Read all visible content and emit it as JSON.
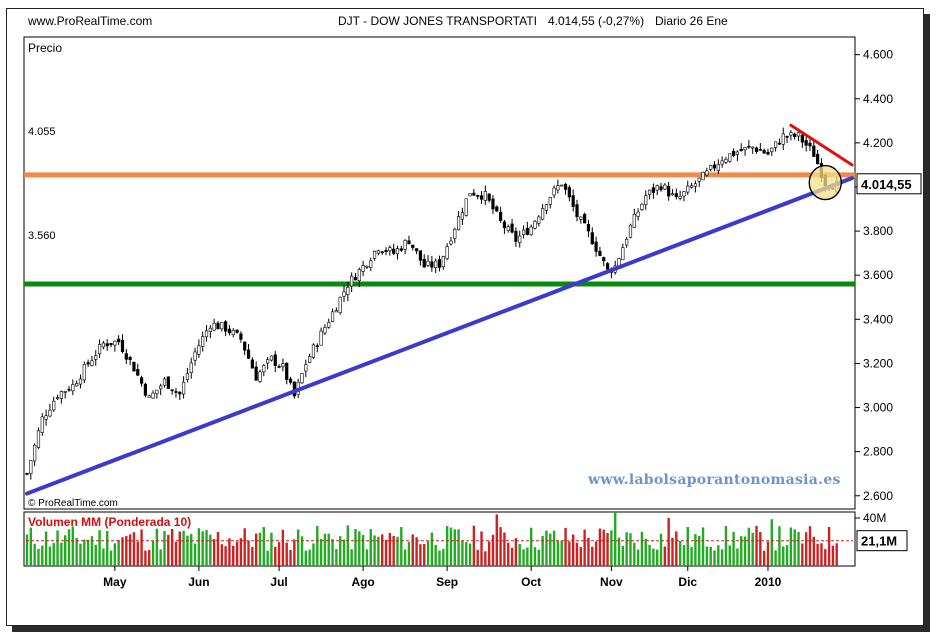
{
  "header": {
    "site": "www.ProRealTime.com",
    "title": "DJT - DOW JONES TRANSPORTATI",
    "quote": "4.014,55 (-0,27%)",
    "period": "Diario  26 Ene"
  },
  "panel_label": "Precio",
  "source_label": "© ProRealTime.com",
  "watermark": "www.labolsaporantonomasia.es",
  "colors": {
    "resistance": "#f08a4b",
    "support": "#0a8a0a",
    "trendline": "#3a3acc",
    "short_trend": "#e01010",
    "highlight": "#f5e08a",
    "volume_up": "#22aa22",
    "volume_down": "#cc2222"
  },
  "chart_data": [
    {
      "type": "candlestick",
      "title": "DJT - DOW JONES TRANSPORTATI",
      "ylabel": "Precio",
      "ylim": [
        2540,
        4680
      ],
      "y_ticks": [
        "4.600",
        "4.400",
        "4.200",
        "4.000",
        "3.800",
        "3.600",
        "3.400",
        "3.200",
        "3.000",
        "2.800",
        "2.600"
      ],
      "y_tick_values": [
        4600,
        4400,
        4200,
        4000,
        3800,
        3600,
        3400,
        3200,
        3000,
        2800,
        2600
      ],
      "x_ticks": [
        "May",
        "Jun",
        "Jul",
        "Ago",
        "Sep",
        "Oct",
        "Nov",
        "Dic",
        "2010"
      ],
      "x_tick_sessions": [
        23,
        45,
        66,
        88,
        110,
        132,
        153,
        173,
        194
      ],
      "sessions": 216,
      "last_price_label": "4.014,55",
      "last_price": 4014.55,
      "levels": [
        {
          "name": "resistance",
          "label": "4.055",
          "value": 4055
        },
        {
          "name": "support",
          "label": "3.560",
          "value": 3560
        }
      ],
      "trendlines": [
        {
          "name": "long-term-support",
          "from": [
            0,
            2610
          ],
          "to": [
            216,
            4040
          ]
        },
        {
          "name": "short-term-resistance",
          "from": [
            200,
            4280
          ],
          "to": [
            216,
            4100
          ]
        }
      ],
      "close_path": [
        [
          0,
          2700
        ],
        [
          4,
          2950
        ],
        [
          8,
          3060
        ],
        [
          12,
          3100
        ],
        [
          16,
          3200
        ],
        [
          20,
          3290
        ],
        [
          24,
          3300
        ],
        [
          28,
          3180
        ],
        [
          32,
          3040
        ],
        [
          36,
          3120
        ],
        [
          40,
          3060
        ],
        [
          44,
          3250
        ],
        [
          48,
          3380
        ],
        [
          52,
          3360
        ],
        [
          56,
          3310
        ],
        [
          60,
          3140
        ],
        [
          64,
          3220
        ],
        [
          67,
          3180
        ],
        [
          70,
          3050
        ],
        [
          73,
          3200
        ],
        [
          76,
          3300
        ],
        [
          80,
          3430
        ],
        [
          84,
          3560
        ],
        [
          88,
          3640
        ],
        [
          92,
          3730
        ],
        [
          96,
          3700
        ],
        [
          100,
          3760
        ],
        [
          104,
          3640
        ],
        [
          108,
          3650
        ],
        [
          112,
          3820
        ],
        [
          116,
          3980
        ],
        [
          120,
          3960
        ],
        [
          124,
          3840
        ],
        [
          128,
          3760
        ],
        [
          132,
          3820
        ],
        [
          136,
          3940
        ],
        [
          140,
          4020
        ],
        [
          144,
          3870
        ],
        [
          148,
          3760
        ],
        [
          152,
          3620
        ],
        [
          154,
          3640
        ],
        [
          158,
          3820
        ],
        [
          162,
          3960
        ],
        [
          166,
          4010
        ],
        [
          170,
          3940
        ],
        [
          174,
          4000
        ],
        [
          178,
          4060
        ],
        [
          182,
          4130
        ],
        [
          186,
          4160
        ],
        [
          190,
          4180
        ],
        [
          194,
          4150
        ],
        [
          198,
          4230
        ],
        [
          202,
          4230
        ],
        [
          206,
          4150
        ],
        [
          209,
          4020
        ],
        [
          212,
          4010
        ]
      ]
    },
    {
      "type": "bar",
      "title": "Volumen MM (Ponderada 10)",
      "ylabel": "Volumen",
      "ylim": [
        0,
        45000000
      ],
      "y_ticks": [
        "40M"
      ],
      "y_tick_values": [
        40000000
      ],
      "last_volume_label": "21,1M",
      "last_volume": 21100000,
      "moving_average_level": 21000000,
      "volume_range": [
        12000000,
        34000000
      ],
      "spikes": [
        {
          "session": 123,
          "value": 43000000
        },
        {
          "session": 154,
          "value": 45000000
        },
        {
          "session": 168,
          "value": 40000000
        },
        {
          "session": 195,
          "value": 39000000
        }
      ]
    }
  ]
}
